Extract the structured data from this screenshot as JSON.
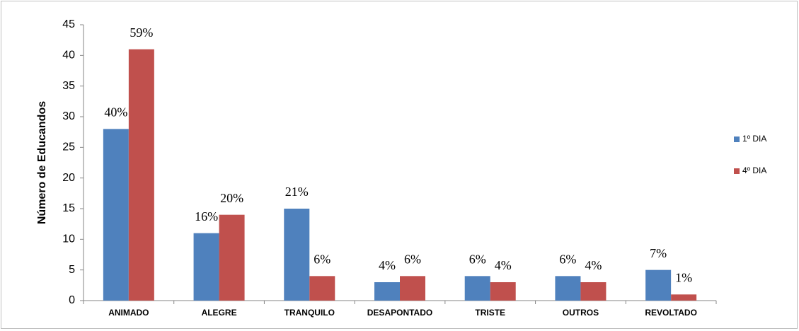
{
  "chart_data": {
    "type": "bar",
    "ylabel": "Número de Educandos",
    "categories": [
      "ANIMADO",
      "ALEGRE",
      "TRANQUILO",
      "DESAPONTADO",
      "TRISTE",
      "OUTROS",
      "REVOLTADO"
    ],
    "series": [
      {
        "name": "1º DIA",
        "color": "#4f81bd",
        "values": [
          28,
          11,
          15,
          3,
          4,
          4,
          5
        ],
        "value_labels": [
          "40%",
          "16%",
          "21%",
          "4%",
          "6%",
          "6%",
          "7%"
        ]
      },
      {
        "name": "4º DIA",
        "color": "#c0504d",
        "values": [
          41,
          14,
          4,
          4,
          3,
          3,
          1
        ],
        "value_labels": [
          "59%",
          "20%",
          "6%",
          "6%",
          "4%",
          "4%",
          "1%"
        ]
      }
    ],
    "ylim": [
      0,
      45
    ],
    "yticks": [
      0,
      5,
      10,
      15,
      20,
      25,
      30,
      35,
      40,
      45
    ],
    "grid": false,
    "legend": "right"
  }
}
